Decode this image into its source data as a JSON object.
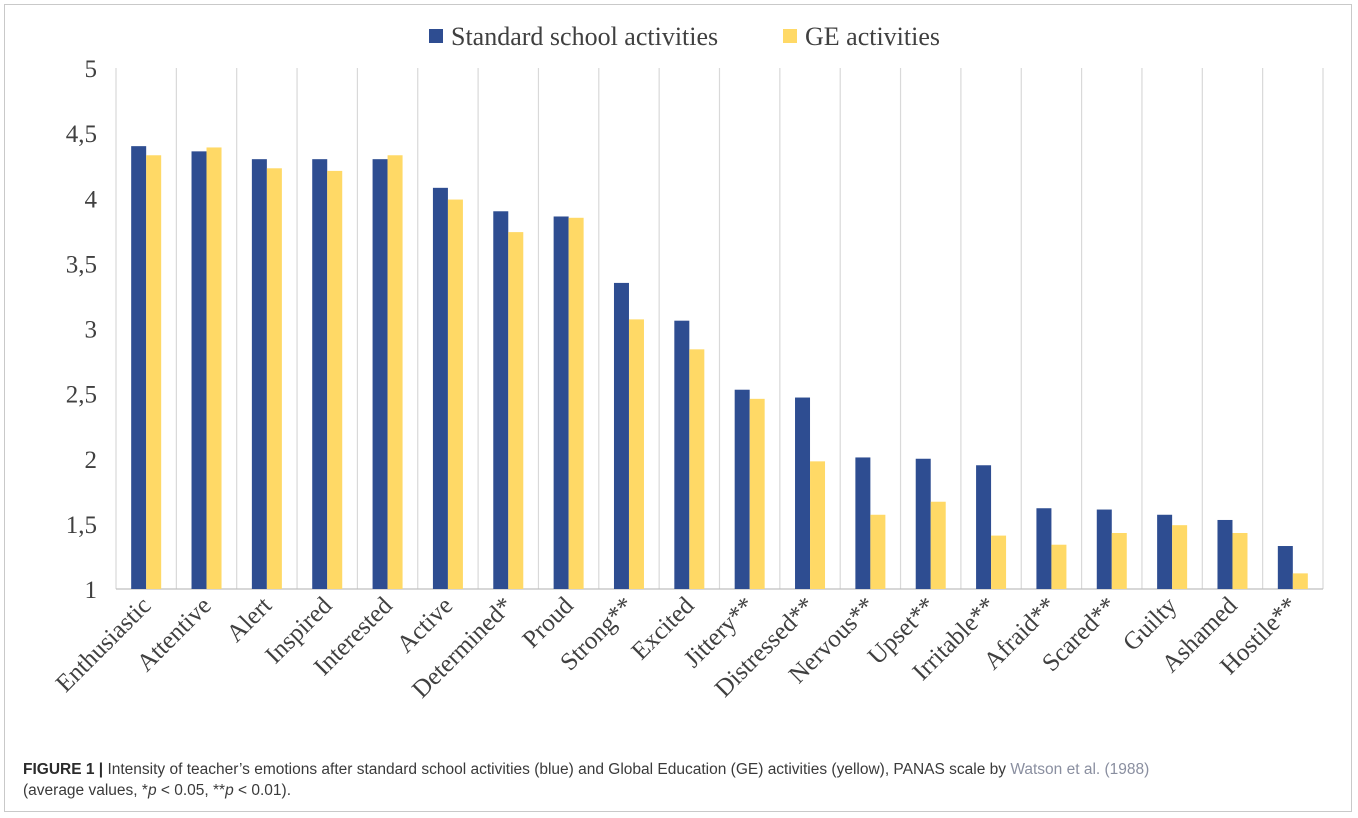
{
  "chart_data": {
    "type": "bar",
    "title": "",
    "xlabel": "",
    "ylabel": "",
    "ylim": [
      1,
      5
    ],
    "yticks": [
      1,
      1.5,
      2,
      2.5,
      3,
      3.5,
      4,
      4.5,
      5
    ],
    "ytick_labels": [
      "1",
      "1,5",
      "2",
      "2,5",
      "3",
      "3,5",
      "4",
      "4,5",
      "5"
    ],
    "grid": "vertical category dividers",
    "legend_position": "top-center",
    "categories": [
      "Enthusiastic",
      "Attentive",
      "Alert",
      "Inspired",
      "Interested",
      "Active",
      "Determined*",
      "Proud",
      "Strong**",
      "Excited",
      "Jittery**",
      "Distressed**",
      "Nervous**",
      "Upset**",
      "Irritable**",
      "Afraid**",
      "Scared**",
      "Guilty",
      "Ashamed",
      "Hostile**"
    ],
    "series": [
      {
        "name": "Standard school activities",
        "color": "#2e4d91",
        "values": [
          4.4,
          4.36,
          4.3,
          4.3,
          4.3,
          4.08,
          3.9,
          3.86,
          3.35,
          3.06,
          2.53,
          2.47,
          2.01,
          2.0,
          1.95,
          1.62,
          1.61,
          1.57,
          1.53,
          1.33
        ]
      },
      {
        "name": "GE activities",
        "color": "#ffd966",
        "values": [
          4.33,
          4.39,
          4.23,
          4.21,
          4.33,
          3.99,
          3.74,
          3.85,
          3.07,
          2.84,
          2.46,
          1.98,
          1.57,
          1.67,
          1.41,
          1.34,
          1.43,
          1.49,
          1.43,
          1.12
        ]
      }
    ]
  },
  "caption": {
    "label": "FIGURE 1 |",
    "text_before": " Intensity of teacher’s emotions after standard school activities (blue) and Global Education (GE) activities (yellow), PANAS scale by ",
    "citation": "Watson et al. (1988)",
    "text_after_a": " (average values, *",
    "p1": "p",
    "text_after_b": " < 0.05, **",
    "p2": "p",
    "text_after_c": " < 0.01)."
  }
}
